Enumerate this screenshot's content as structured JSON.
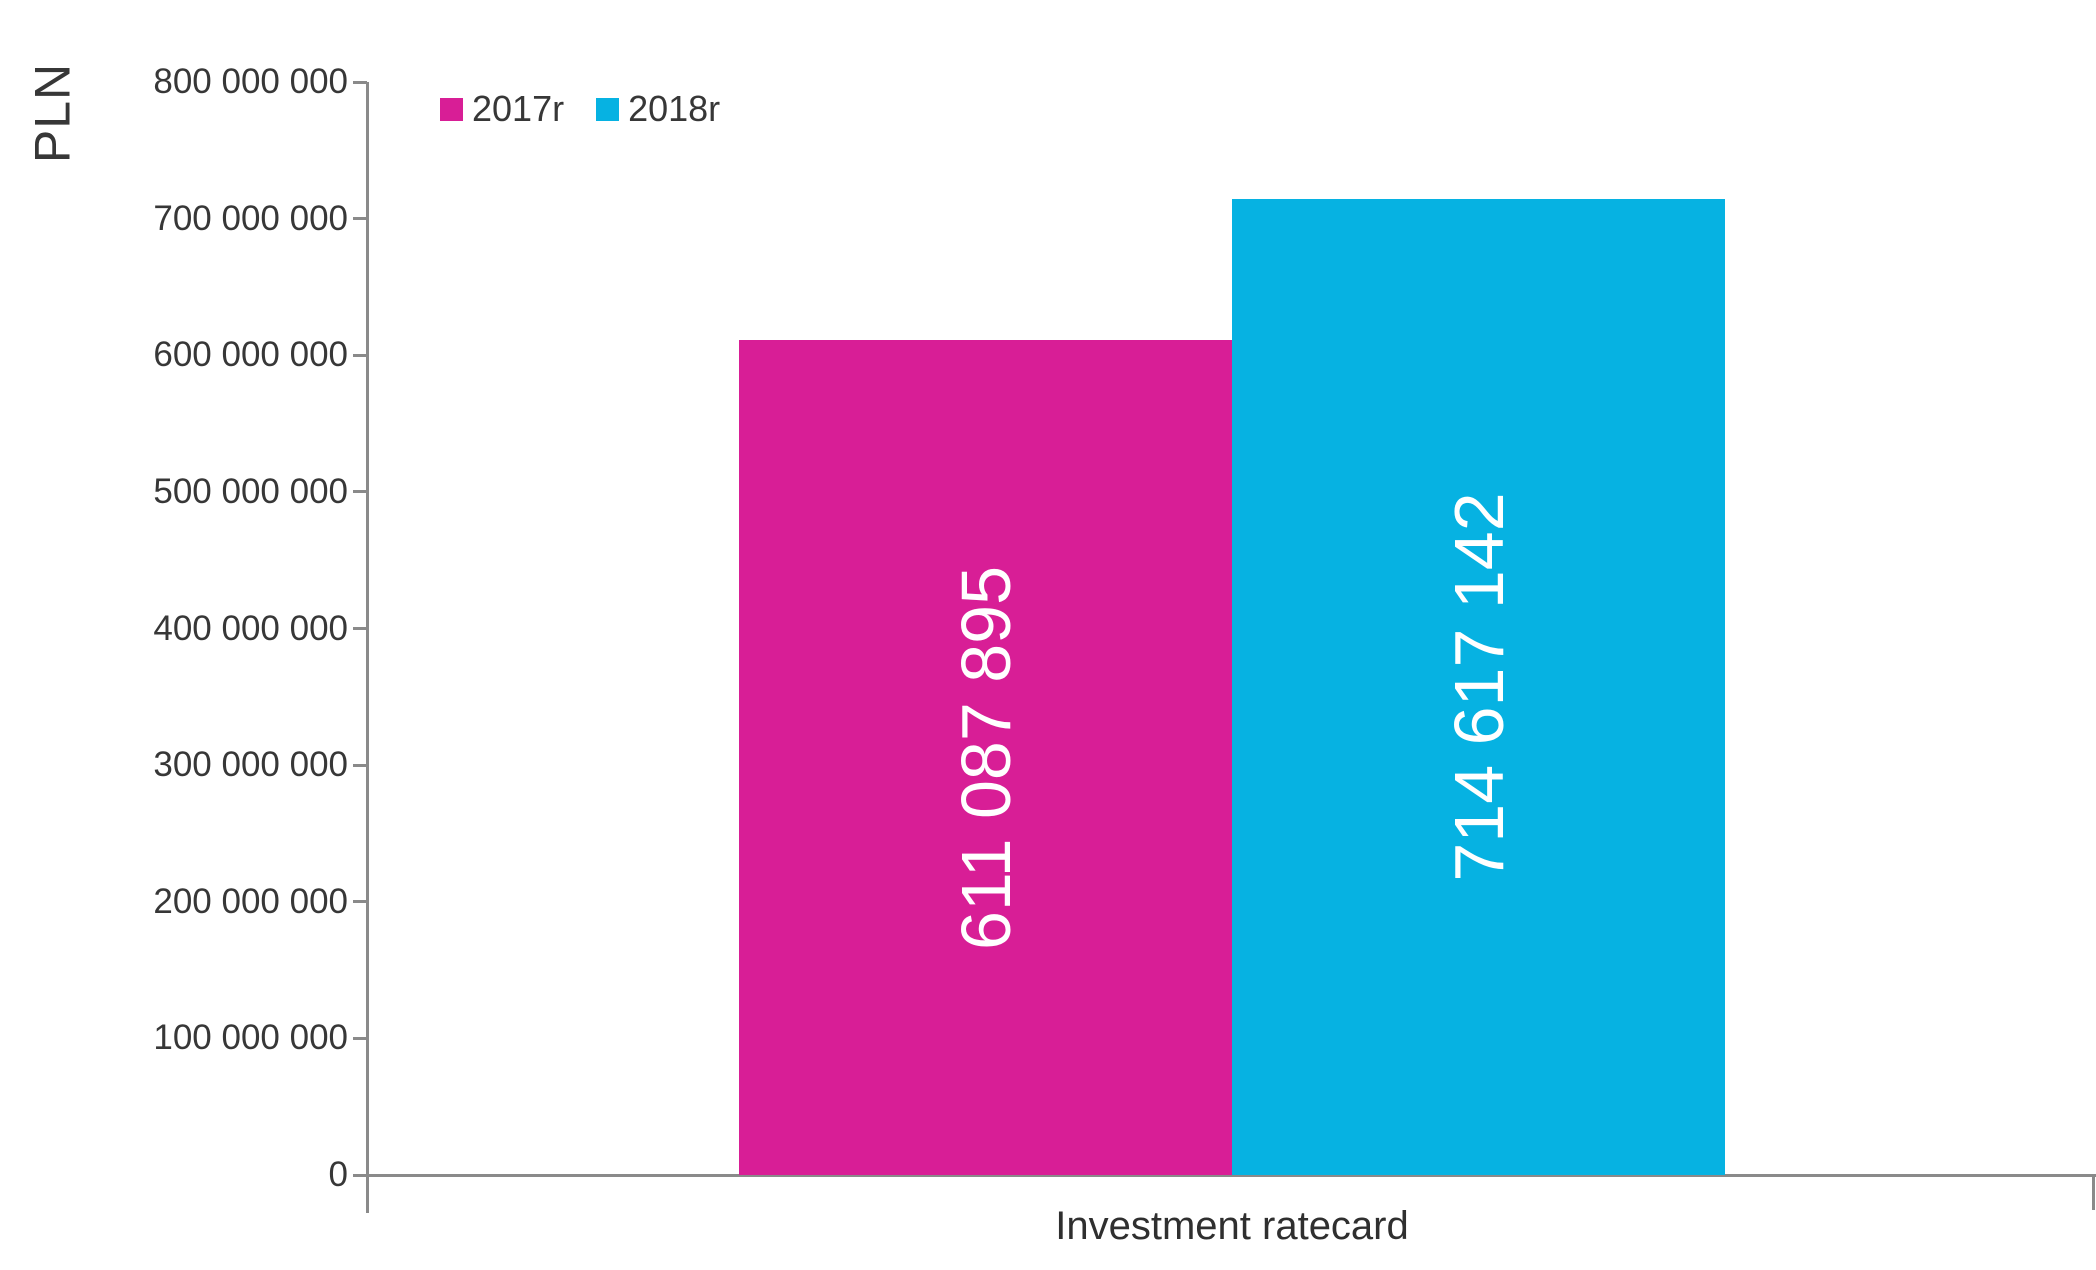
{
  "chart_data": {
    "type": "bar",
    "title": "",
    "ylabel": "PLN",
    "xlabel": "",
    "categories": [
      "Investment ratecard"
    ],
    "series": [
      {
        "name": "2017r",
        "color": "#D81E96",
        "values": [
          611087895
        ],
        "value_labels": [
          "611 087 895"
        ]
      },
      {
        "name": "2018r",
        "color": "#06B2E2",
        "values": [
          714617142
        ],
        "value_labels": [
          "714 617 142"
        ]
      }
    ],
    "ylim": [
      0,
      800000000
    ],
    "ytick_step": 100000000,
    "ytick_labels": [
      "0",
      "100 000 000",
      "200 000 000",
      "300 000 000",
      "400 000 000",
      "500 000 000",
      "600 000 000",
      "700 000 000",
      "800 000 000"
    ],
    "legend_position": "top-left",
    "grid": false
  },
  "colors": {
    "axis": "#8a8a8a",
    "text": "#373737",
    "bar_label": "#ffffff",
    "background": "#ffffff"
  }
}
